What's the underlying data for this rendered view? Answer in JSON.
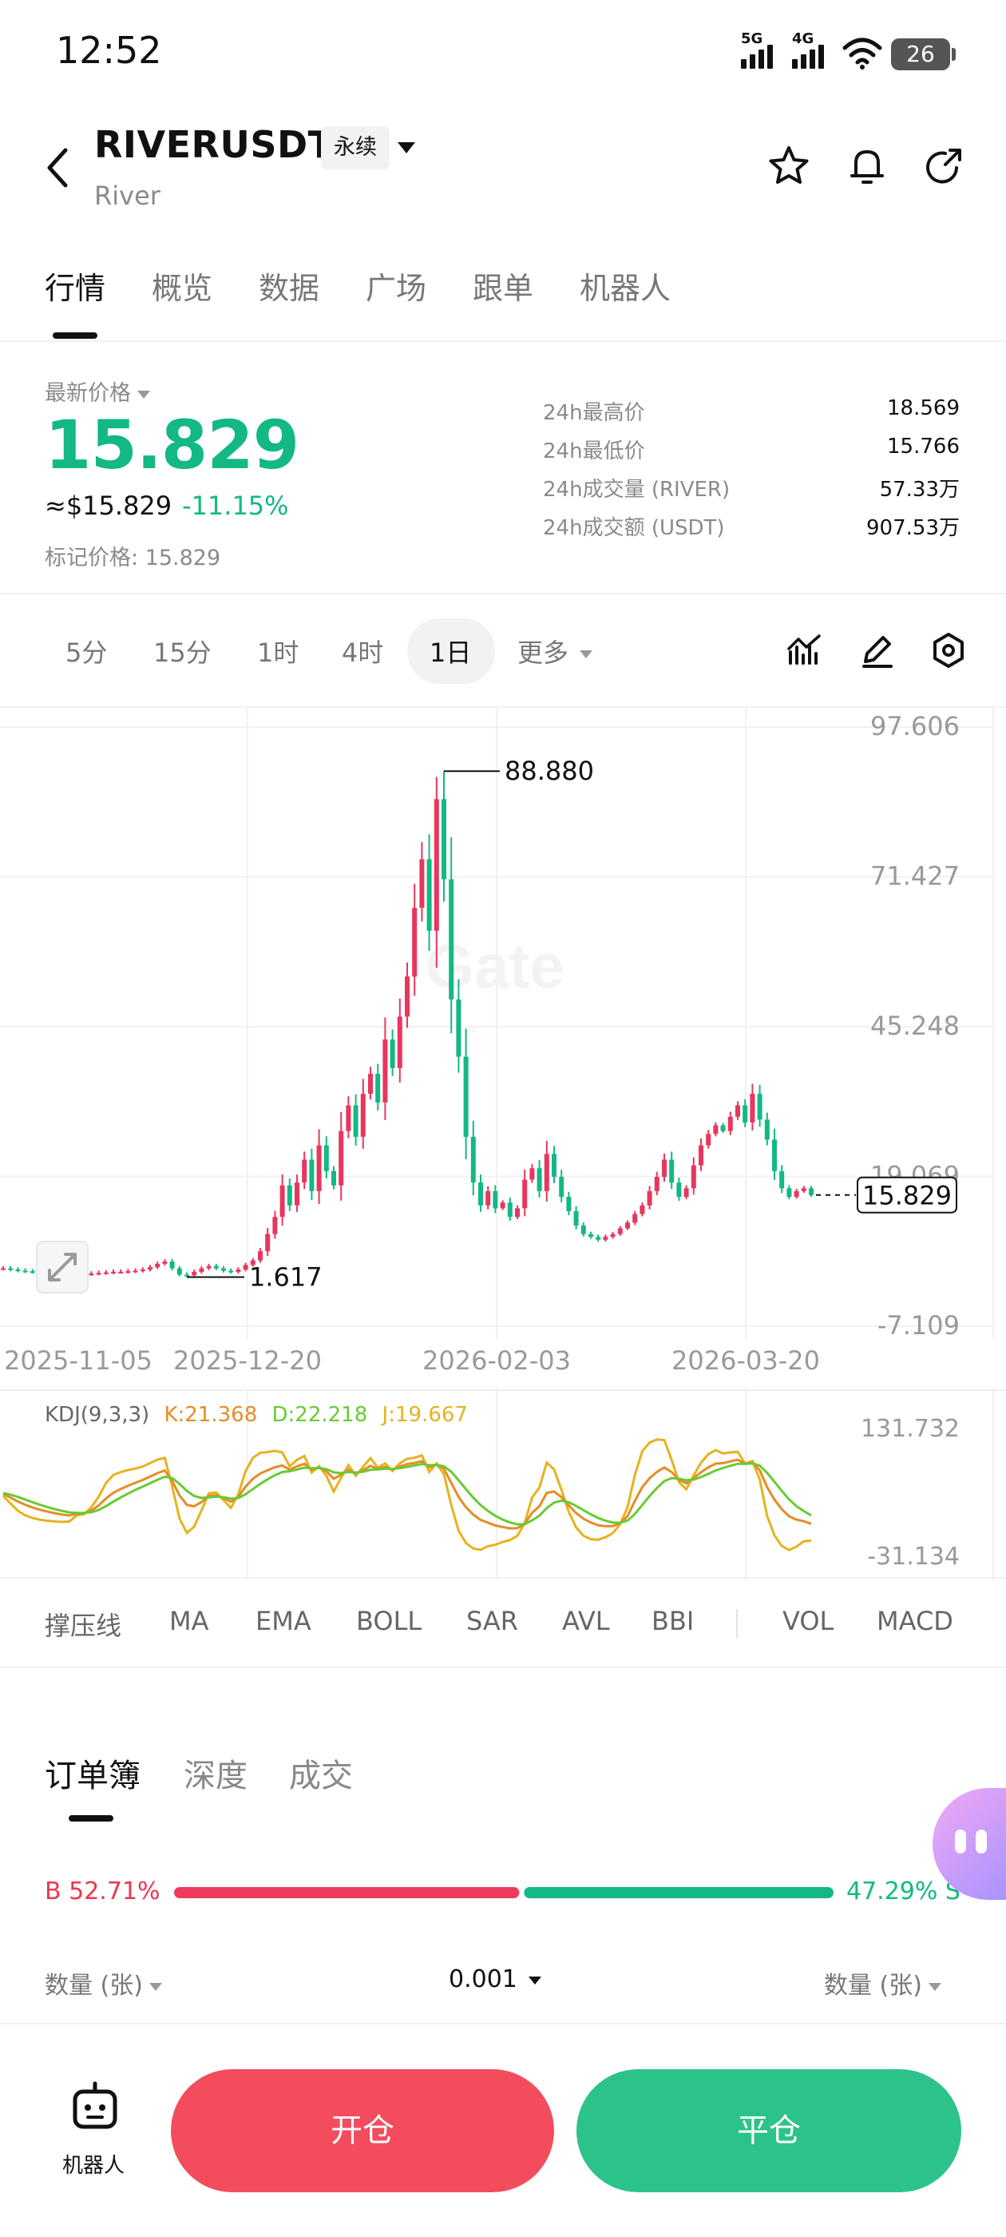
{
  "status_bar": {
    "time": "12:52",
    "signal_1": "5G",
    "signal_2": "4G",
    "battery": "26"
  },
  "header": {
    "symbol": "RIVERUSDT",
    "contract_type": "永续",
    "name": "River"
  },
  "tabs": [
    "行情",
    "概览",
    "数据",
    "广场",
    "跟单",
    "机器人"
  ],
  "price": {
    "label": "最新价格",
    "last": "15.829",
    "usd": "≈$15.829",
    "change": "-11.15%",
    "mark": "标记价格: 15.829"
  },
  "stats": [
    {
      "label": "24h最高价",
      "value": "18.569"
    },
    {
      "label": "24h最低价",
      "value": "15.766"
    },
    {
      "label": "24h成交量 (RIVER)",
      "value": "57.33万"
    },
    {
      "label": "24h成交额 (USDT)",
      "value": "907.53万"
    }
  ],
  "intervals": [
    "5分",
    "15分",
    "1时",
    "4时",
    "1日",
    "更多"
  ],
  "active_interval": "1日",
  "chart_data": {
    "type": "candlestick",
    "interval": "1d",
    "y_axis_labels": [
      "97.606",
      "71.427",
      "45.248",
      "19.069",
      "-7.109"
    ],
    "ylim": [
      -7.109,
      97.606
    ],
    "x_tick_labels": [
      "2025-11-05",
      "2025-12-20",
      "2026-02-03",
      "2026-03-20"
    ],
    "high_marker": "88.880",
    "low_marker": "1.617",
    "last_price_tag": "15.829",
    "watermark": "Gate",
    "close_series": [
      3.0,
      2.8,
      2.6,
      2.5,
      2.4,
      2.3,
      2.2,
      2.1,
      2.0,
      2.0,
      2.1,
      2.0,
      2.1,
      2.2,
      2.3,
      2.4,
      2.4,
      2.5,
      2.6,
      2.8,
      3.2,
      3.8,
      4.2,
      3.0,
      1.9,
      1.8,
      2.4,
      3.0,
      3.4,
      3.0,
      2.6,
      2.4,
      2.8,
      3.6,
      4.4,
      6.0,
      9.0,
      12.0,
      17.5,
      14.0,
      18.0,
      22.0,
      16.5,
      24.5,
      20.0,
      17.5,
      27.0,
      31.5,
      26.0,
      33.5,
      37.0,
      32.0,
      43.0,
      38.0,
      47.0,
      54.0,
      66.0,
      74.5,
      62.0,
      85.0,
      71.0,
      50.0,
      40.0,
      26.0,
      18.0,
      14.0,
      16.5,
      13.5,
      14.5,
      12.0,
      13.5,
      18.5,
      20.5,
      16.5,
      23.0,
      19.0,
      15.5,
      13.0,
      10.5,
      9.0,
      8.5,
      8.0,
      8.5,
      9.0,
      10.0,
      11.0,
      12.5,
      14.0,
      16.5,
      19.0,
      22.0,
      18.0,
      15.5,
      17.0,
      21.0,
      24.5,
      26.5,
      28.0,
      27.0,
      29.5,
      31.5,
      28.5,
      33.5,
      29.0,
      25.5,
      20.0,
      17.0,
      15.5,
      16.5,
      17.0,
      15.829
    ]
  },
  "kdj": {
    "label": "KDJ(9,3,3)",
    "k": "K:21.368",
    "d": "D:22.218",
    "j": "J:19.667",
    "max_label": "131.732",
    "min_label": "-31.134",
    "colors": {
      "k": "#e58c26",
      "d": "#66cc33",
      "j": "#e6b21e"
    }
  },
  "indicators": [
    "撑压线",
    "MA",
    "EMA",
    "BOLL",
    "SAR",
    "AVL",
    "BBI",
    "VOL",
    "MACD"
  ],
  "orderbook": {
    "tabs": [
      "订单簿",
      "深度",
      "成交"
    ],
    "buy_label": "B 52.71%",
    "sell_label": "47.29% S",
    "buy_ratio": 0.5271,
    "qty_left": "数量 (张)",
    "precision": "0.001",
    "qty_right": "数量 (张)"
  },
  "bottom_bar": {
    "robot_label": "机器人",
    "open": "开仓",
    "close": "平仓"
  },
  "colors": {
    "up": "#e8365d",
    "down": "#13b884",
    "open_button": "#f24c5d",
    "close_button": "#2cc38a"
  }
}
